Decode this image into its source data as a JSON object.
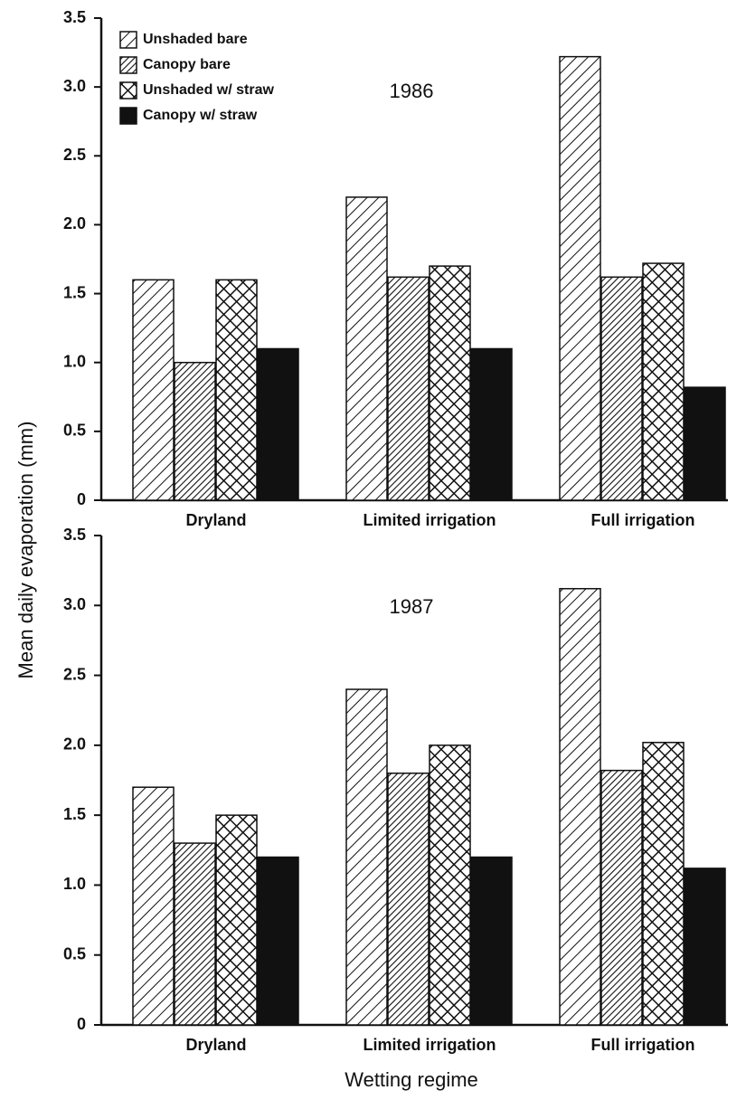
{
  "chart_data": [
    {
      "type": "bar",
      "ylabel": "Mean daily evaporation (mm)",
      "annotation": "1986",
      "legend": "upper left",
      "categories": [
        "Dryland",
        "Limited irrigation",
        "Full irrigation"
      ],
      "ylim": [
        0,
        3.5
      ],
      "yticks": [
        0,
        0.5,
        {
          "value": 1,
          "label": "1.0"
        },
        1.5,
        {
          "value": 2,
          "label": "2.0"
        },
        2.5,
        {
          "value": 3,
          "label": "3.0"
        },
        3.5
      ],
      "series": [
        {
          "name": "Unshaded bare",
          "pattern": "hatch",
          "values": [
            1.6,
            2.2,
            3.22
          ]
        },
        {
          "name": "Canopy bare",
          "pattern": "dense-hatch",
          "values": [
            1.0,
            1.62,
            1.62
          ]
        },
        {
          "name": "Unshaded w/ straw",
          "pattern": "crosshatch",
          "values": [
            1.6,
            1.7,
            1.72
          ]
        },
        {
          "name": "Canopy w/ straw",
          "pattern": "solid",
          "values": [
            1.1,
            1.1,
            0.82
          ]
        }
      ]
    },
    {
      "type": "bar",
      "xlabel": "Wetting regime",
      "annotation": "1987",
      "categories": [
        "Dryland",
        "Limited irrigation",
        "Full irrigation"
      ],
      "ylim": [
        0,
        3.5
      ],
      "yticks": [
        0,
        0.5,
        {
          "value": 1,
          "label": "1.0"
        },
        1.5,
        {
          "value": 2,
          "label": "2.0"
        },
        2.5,
        {
          "value": 3,
          "label": "3.0"
        },
        3.5
      ],
      "series": [
        {
          "pattern": "hatch",
          "values": [
            1.7,
            2.4,
            3.12
          ]
        },
        {
          "pattern": "dense-hatch",
          "values": [
            1.3,
            1.8,
            1.82
          ]
        },
        {
          "pattern": "crosshatch",
          "values": [
            1.5,
            2.0,
            2.02
          ]
        },
        {
          "pattern": "solid",
          "values": [
            1.2,
            1.2,
            1.12
          ]
        }
      ]
    }
  ]
}
